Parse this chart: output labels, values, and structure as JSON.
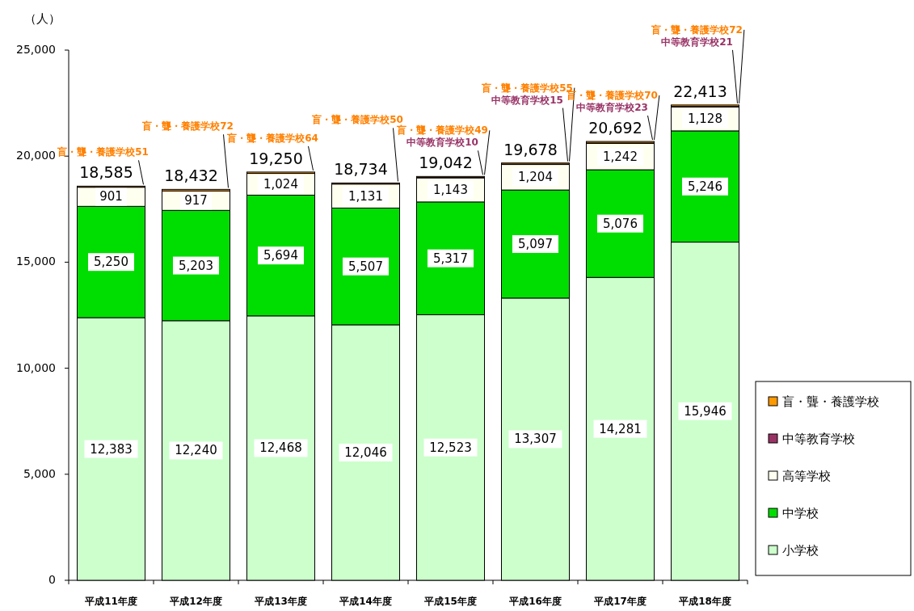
{
  "chart_data": {
    "type": "bar",
    "stacked": true,
    "ylabel": "（人）",
    "categories": [
      "平成11年度",
      "平成12年度",
      "平成13年度",
      "平成14年度",
      "平成15年度",
      "平成16年度",
      "平成17年度",
      "平成18年度"
    ],
    "series": [
      {
        "name": "小学校",
        "color": "#ccffcc",
        "values": [
          12383,
          12240,
          12468,
          12046,
          12523,
          13307,
          14281,
          15946
        ],
        "value_labels": [
          "12,383",
          "12,240",
          "12,468",
          "12,046",
          "12,523",
          "13,307",
          "14,281",
          "15,946"
        ]
      },
      {
        "name": "中学校",
        "color": "#00dd00",
        "values": [
          5250,
          5203,
          5694,
          5507,
          5317,
          5097,
          5076,
          5246
        ],
        "value_labels": [
          "5,250",
          "5,203",
          "5,694",
          "5,507",
          "5,317",
          "5,097",
          "5,076",
          "5,246"
        ]
      },
      {
        "name": "高等学校",
        "color": "#fffff0",
        "values": [
          901,
          917,
          1024,
          1131,
          1143,
          1204,
          1242,
          1128
        ],
        "value_labels": [
          "901",
          "917",
          "1,024",
          "1,131",
          "1,143",
          "1,204",
          "1,242",
          "1,128"
        ]
      },
      {
        "name": "中等教育学校",
        "color": "#993366",
        "values": [
          null,
          null,
          null,
          null,
          10,
          15,
          23,
          21
        ],
        "value_labels": [
          null,
          null,
          null,
          null,
          "中等教育学校10",
          "中等教育学校15",
          "中等教育学校23",
          "中等教育学校21"
        ]
      },
      {
        "name": "盲・聾・養護学校",
        "color": "#ff9900",
        "values": [
          51,
          72,
          64,
          50,
          49,
          55,
          70,
          72
        ],
        "value_labels": [
          "盲・聾・養護学校51",
          "盲・聾・養護学校72",
          "盲・聾・養護学校64",
          "盲・聾・養護学校50",
          "盲・聾・養護学校49",
          "盲・聾・養護学校55",
          "盲・聾・養護学校70",
          "盲・聾・養護学校72"
        ]
      }
    ],
    "totals": [
      "18,585",
      "18,432",
      "19,250",
      "18,734",
      "19,042",
      "19,678",
      "20,692",
      "22,413"
    ],
    "ylim": [
      0,
      25000
    ],
    "yticks": [
      0,
      {
        "value": 5000,
        "label": "5,000"
      },
      {
        "value": 10000,
        "label": "10,000"
      },
      {
        "value": 15000,
        "label": "15,000"
      },
      {
        "value": 20000,
        "label": "20,000"
      },
      {
        "value": 25000,
        "label": "25,000"
      }
    ],
    "grid": false,
    "legend": "bottom right"
  }
}
